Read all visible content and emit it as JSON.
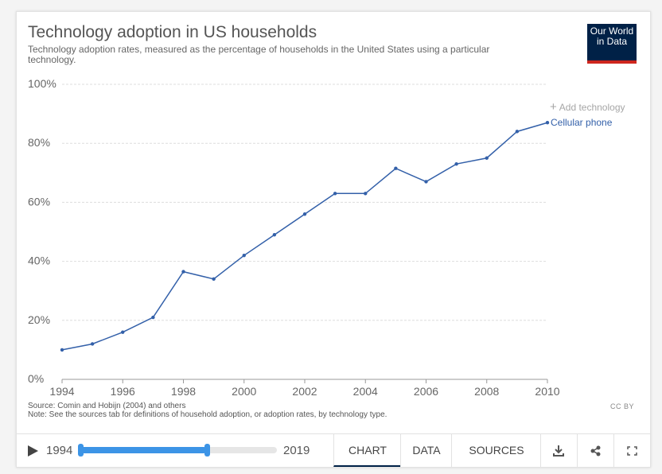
{
  "header": {
    "title": "Technology adoption in US households",
    "subtitle": "Technology adoption rates, measured as the percentage of households in the United States using a particular technology.",
    "logo_line1": "Our World",
    "logo_line2": "in Data",
    "add_technology_label": "Add technology"
  },
  "chart_data": {
    "type": "line",
    "title": "Technology adoption in US households",
    "xlabel": "",
    "ylabel": "",
    "xlim": [
      1994,
      2010
    ],
    "ylim": [
      0,
      100
    ],
    "x_ticks": [
      "1994",
      "1996",
      "1998",
      "2000",
      "2002",
      "2004",
      "2006",
      "2008",
      "2010"
    ],
    "y_ticks": [
      "0%",
      "20%",
      "40%",
      "60%",
      "80%",
      "100%"
    ],
    "grid": true,
    "series": [
      {
        "name": "Cellular phone",
        "color": "#3360a9",
        "x": [
          1994,
          1995,
          1996,
          1997,
          1998,
          1999,
          2000,
          2001,
          2002,
          2003,
          2004,
          2005,
          2006,
          2007,
          2008,
          2009,
          2010
        ],
        "values": [
          10,
          12,
          16,
          21,
          36.5,
          34,
          42,
          49,
          56,
          63,
          63,
          71.5,
          67,
          73,
          75,
          84,
          87
        ]
      }
    ]
  },
  "footer": {
    "source": "Source: Comin and Hobijn (2004) and others",
    "note": "Note: See the sources tab for definitions of household adoption, or adoption rates, by technology type.",
    "license": "CC BY"
  },
  "controls": {
    "start_year": "1994",
    "end_year": "2019",
    "tabs": [
      "CHART",
      "DATA",
      "SOURCES"
    ],
    "active_tab": "CHART"
  },
  "colors": {
    "accent": "#3c94e6",
    "logo_bg": "#002147",
    "logo_bar": "#ce261e"
  }
}
